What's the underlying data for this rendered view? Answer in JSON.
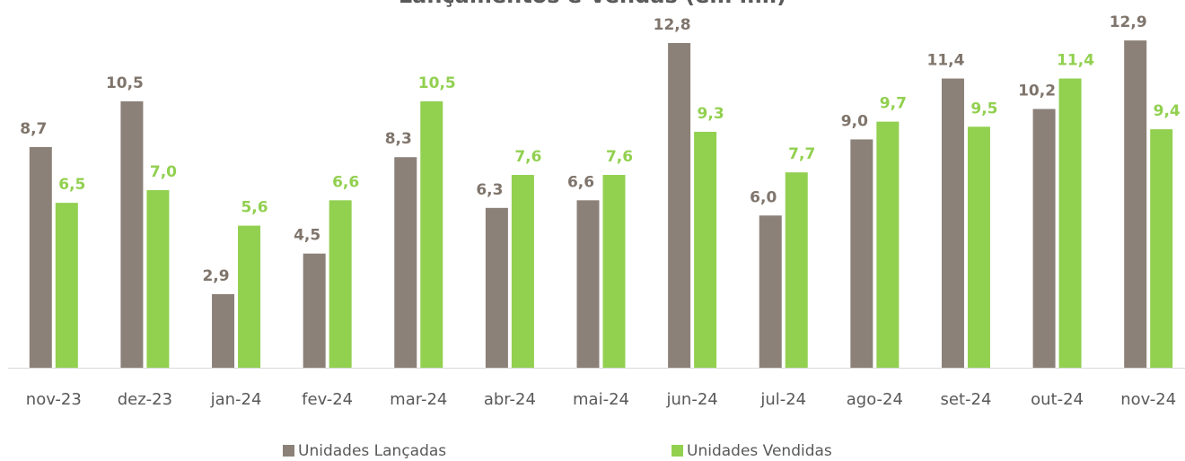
{
  "chart_data": {
    "type": "bar",
    "title": "Lançamentos e Vendas (em mil)",
    "categories": [
      "nov-23",
      "dez-23",
      "jan-24",
      "fev-24",
      "mar-24",
      "abr-24",
      "mai-24",
      "jun-24",
      "jul-24",
      "ago-24",
      "set-24",
      "out-24",
      "nov-24"
    ],
    "series": [
      {
        "name": "Unidades Lançadas",
        "color": "#8c8178",
        "values": [
          8.7,
          10.5,
          2.9,
          4.5,
          8.3,
          6.3,
          6.6,
          12.8,
          6.0,
          9.0,
          11.4,
          10.2,
          12.9
        ],
        "value_labels": [
          "8,7",
          "10,5",
          "2,9",
          "4,5",
          "8,3",
          "6,3",
          "6,6",
          "12,8",
          "6,0",
          "9,0",
          "11,4",
          "10,2",
          "12,9"
        ]
      },
      {
        "name": "Unidades Vendidas",
        "color": "#92d050",
        "values": [
          6.5,
          7.0,
          5.6,
          6.6,
          10.5,
          7.6,
          7.6,
          9.3,
          7.7,
          9.7,
          9.5,
          11.4,
          9.4
        ],
        "value_labels": [
          "6,5",
          "7,0",
          "5,6",
          "6,6",
          "10,5",
          "7,6",
          "7,6",
          "9,3",
          "7,7",
          "9,7",
          "9,5",
          "11,4",
          "9,4"
        ]
      }
    ],
    "ylim": [
      0,
      14
    ],
    "legend": "bottom"
  }
}
